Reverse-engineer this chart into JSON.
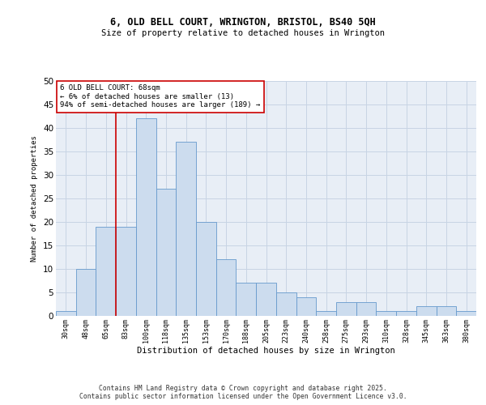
{
  "title1": "6, OLD BELL COURT, WRINGTON, BRISTOL, BS40 5QH",
  "title2": "Size of property relative to detached houses in Wrington",
  "xlabel": "Distribution of detached houses by size in Wrington",
  "ylabel": "Number of detached properties",
  "bins": [
    "30sqm",
    "48sqm",
    "65sqm",
    "83sqm",
    "100sqm",
    "118sqm",
    "135sqm",
    "153sqm",
    "170sqm",
    "188sqm",
    "205sqm",
    "223sqm",
    "240sqm",
    "258sqm",
    "275sqm",
    "293sqm",
    "310sqm",
    "328sqm",
    "345sqm",
    "363sqm",
    "380sqm"
  ],
  "values": [
    1,
    10,
    19,
    19,
    42,
    27,
    37,
    20,
    12,
    7,
    7,
    5,
    4,
    1,
    3,
    3,
    1,
    1,
    2,
    2,
    1
  ],
  "bar_color": "#ccdcee",
  "bar_edge_color": "#6699cc",
  "annotation_text": "6 OLD BELL COURT: 68sqm\n← 6% of detached houses are smaller (13)\n94% of semi-detached houses are larger (189) →",
  "annotation_box_color": "#ffffff",
  "annotation_box_edge": "#cc0000",
  "grid_color": "#c8d4e4",
  "background_color": "#e8eef6",
  "footer": "Contains HM Land Registry data © Crown copyright and database right 2025.\nContains public sector information licensed under the Open Government Licence v3.0.",
  "ylim": [
    0,
    50
  ],
  "yticks": [
    0,
    5,
    10,
    15,
    20,
    25,
    30,
    35,
    40,
    45,
    50
  ]
}
